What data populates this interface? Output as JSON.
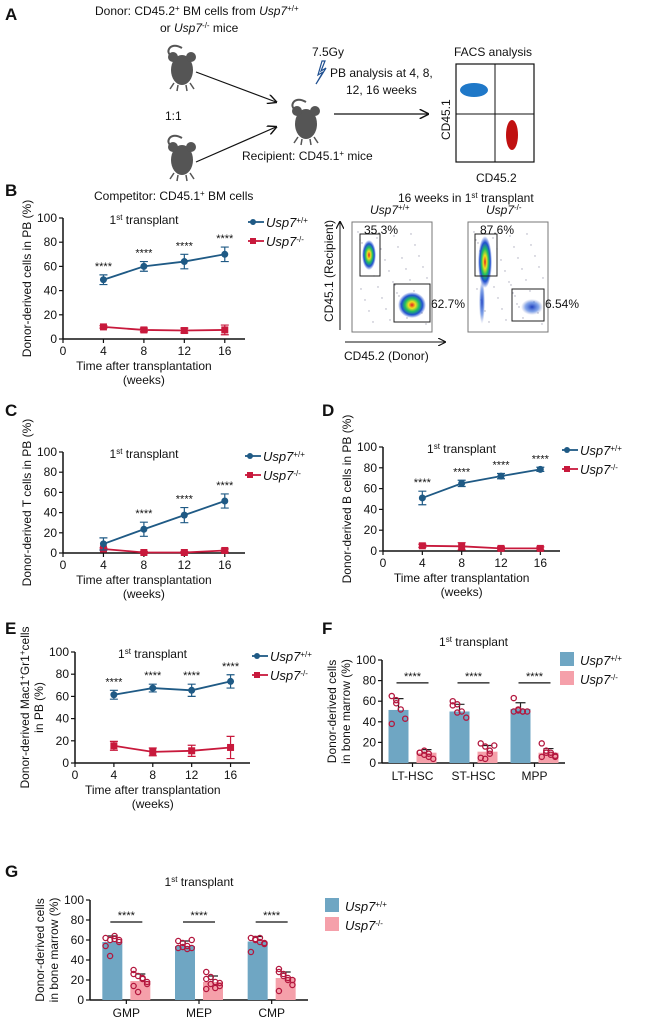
{
  "panel_labels": [
    "A",
    "B",
    "C",
    "D",
    "E",
    "F",
    "G"
  ],
  "colors": {
    "wt_line": "#1f5a85",
    "ko_line": "#c8193c",
    "wt_bar": "#6fa6c3",
    "ko_bar": "#f5a0aa",
    "points": "#b3173e",
    "facs_blue": "#1f78c8",
    "facs_red": "#c01010",
    "mouse": "#555555"
  },
  "schematic": {
    "donor_line1": "Donor: CD45.2",
    "donor_line1_sup": "+",
    "donor_line1_rest": " BM cells from ",
    "donor_gene": "Usp7",
    "donor_gene_sup": "+/+",
    "donor_line2_pre": "or ",
    "donor_gene2": "Usp7",
    "donor_gene2_sup": "-/-",
    "donor_line2_rest": " mice",
    "ratio": "1:1",
    "competitor": "Competitor: CD45.1",
    "competitor_sup": "+",
    "competitor_rest": " BM cells",
    "irradiation": "7.5Gy",
    "irradiation_icon": "lightning-bolt-icon",
    "pb_line1": "PB analysis at 4, 8,",
    "pb_line2": "12, 16 weeks",
    "recipient": "Recipient: CD45.1",
    "recipient_sup": "+",
    "recipient_rest": " mice",
    "facs_title": "FACS analysis",
    "facs_y": "CD45.1",
    "facs_x": "CD45.2",
    "mouse_icon": "mouse-icon"
  },
  "flow": {
    "title_pre": "16 weeks in 1",
    "title_sup": "st",
    "title_post": " transplant",
    "ylabel": "CD45.1 (Recipient)",
    "xlabel": "CD45.2 (Donor)",
    "plots": [
      {
        "gene": "Usp7",
        "sup": "+/+",
        "recipient_pct": "35.3%",
        "donor_pct": "62.7%"
      },
      {
        "gene": "Usp7",
        "sup": "-/-",
        "recipient_pct": "87.6%",
        "donor_pct": "6.54%"
      }
    ]
  },
  "chart_data": [
    {
      "panel": "B",
      "type": "line",
      "title": [
        {
          "t": "1"
        },
        {
          "t": "st",
          "sup": true
        },
        {
          "t": " transplant"
        }
      ],
      "ylabel": [
        [
          {
            "t": "Donor-derived cells in PB (%)"
          }
        ]
      ],
      "xlabel": [
        "Time after transplantation",
        "(weeks)"
      ],
      "ylim": [
        0,
        100
      ],
      "yticks": [
        0,
        20,
        40,
        60,
        80,
        100
      ],
      "xticks": [
        0,
        4,
        8,
        12,
        16
      ],
      "x": [
        4,
        8,
        12,
        16
      ],
      "significance": [
        "****",
        "****",
        "****",
        "****"
      ],
      "legend": "top-right",
      "series": [
        {
          "name": [
            {
              "t": "Usp7",
              "i": true
            },
            {
              "t": "+/+",
              "sup": true
            }
          ],
          "color": "#1f5a85",
          "marker": "circle",
          "values": [
            49,
            60,
            64,
            70
          ],
          "errors": [
            4,
            4,
            6,
            6
          ]
        },
        {
          "name": [
            {
              "t": "Usp7",
              "i": true
            },
            {
              "t": "-/-",
              "sup": true
            }
          ],
          "color": "#c8193c",
          "marker": "square",
          "values": [
            10,
            7.5,
            7,
            7.5
          ],
          "errors": [
            1,
            1.5,
            2,
            4
          ]
        }
      ]
    },
    {
      "panel": "C",
      "type": "line",
      "title": [
        {
          "t": "1"
        },
        {
          "t": "st",
          "sup": true
        },
        {
          "t": " transplant"
        }
      ],
      "ylabel": [
        [
          {
            "t": "Donor-derived T cells in PB (%)"
          }
        ]
      ],
      "xlabel": [
        "Time after transplantation",
        "(weeks)"
      ],
      "ylim": [
        0,
        100
      ],
      "yticks": [
        0,
        20,
        40,
        60,
        80,
        100
      ],
      "xticks": [
        0,
        4,
        8,
        12,
        16
      ],
      "x": [
        4,
        8,
        12,
        16
      ],
      "significance": [
        "",
        "****",
        "****",
        "****"
      ],
      "legend": "top-right",
      "series": [
        {
          "name": [
            {
              "t": "Usp7",
              "i": true
            },
            {
              "t": "+/+",
              "sup": true
            }
          ],
          "color": "#1f5a85",
          "marker": "circle",
          "values": [
            9,
            23.5,
            37.5,
            51.5
          ],
          "errors": [
            6,
            7,
            7.5,
            7
          ]
        },
        {
          "name": [
            {
              "t": "Usp7",
              "i": true
            },
            {
              "t": "-/-",
              "sup": true
            }
          ],
          "color": "#c8193c",
          "marker": "square",
          "values": [
            4,
            0.5,
            0.5,
            2.5
          ],
          "errors": [
            1,
            1,
            1,
            1.5
          ]
        }
      ]
    },
    {
      "panel": "D",
      "type": "line",
      "title": [
        {
          "t": "1"
        },
        {
          "t": "st",
          "sup": true
        },
        {
          "t": " transplant"
        }
      ],
      "ylabel": [
        [
          {
            "t": "Donor-derived B cells in PB (%)"
          }
        ]
      ],
      "xlabel": [
        "Time after transplantation",
        "(weeks)"
      ],
      "ylim": [
        0,
        100
      ],
      "yticks": [
        0,
        20,
        40,
        60,
        80,
        100
      ],
      "xticks": [
        0,
        4,
        8,
        12,
        16
      ],
      "x": [
        4,
        8,
        12,
        16
      ],
      "significance": [
        "****",
        "****",
        "****",
        "****"
      ],
      "legend": "top-right",
      "series": [
        {
          "name": [
            {
              "t": "Usp7",
              "i": true
            },
            {
              "t": "+/+",
              "sup": true
            }
          ],
          "color": "#1f5a85",
          "marker": "circle",
          "values": [
            51,
            65,
            72,
            78.5
          ],
          "errors": [
            6.5,
            3,
            2.5,
            2
          ]
        },
        {
          "name": [
            {
              "t": "Usp7",
              "i": true
            },
            {
              "t": "-/-",
              "sup": true
            }
          ],
          "color": "#c8193c",
          "marker": "square",
          "values": [
            5,
            4.5,
            2.5,
            2.5
          ],
          "errors": [
            1.5,
            3.5,
            1.5,
            1.5
          ]
        }
      ]
    },
    {
      "panel": "E",
      "type": "line",
      "title": [
        {
          "t": "1"
        },
        {
          "t": "st",
          "sup": true
        },
        {
          "t": " transplant"
        }
      ],
      "ylabel": [
        [
          {
            "t": "Donor-derived Mac1"
          },
          {
            "t": "+",
            "sup": true
          },
          {
            "t": "Gr1"
          },
          {
            "t": "+",
            "sup": true
          },
          {
            "t": "cells"
          }
        ],
        [
          {
            "t": "in PB (%)"
          }
        ]
      ],
      "xlabel": [
        "Time after transplantation",
        "(weeks)"
      ],
      "ylim": [
        0,
        100
      ],
      "yticks": [
        0,
        20,
        40,
        60,
        80,
        100
      ],
      "xticks": [
        0,
        4,
        8,
        12,
        16
      ],
      "x": [
        4,
        8,
        12,
        16
      ],
      "significance": [
        "****",
        "****",
        "****",
        "****"
      ],
      "legend": "top-right",
      "series": [
        {
          "name": [
            {
              "t": "Usp7",
              "i": true
            },
            {
              "t": "+/+",
              "sup": true
            }
          ],
          "color": "#1f5a85",
          "marker": "circle",
          "values": [
            61.5,
            67.5,
            65.5,
            73.5
          ],
          "errors": [
            4,
            3.5,
            5.5,
            6
          ]
        },
        {
          "name": [
            {
              "t": "Usp7",
              "i": true
            },
            {
              "t": "-/-",
              "sup": true
            }
          ],
          "color": "#c8193c",
          "marker": "square",
          "values": [
            15.5,
            10,
            11,
            14
          ],
          "errors": [
            4,
            3.5,
            5,
            10
          ]
        }
      ]
    },
    {
      "panel": "F",
      "type": "bar",
      "title": [
        {
          "t": "1"
        },
        {
          "t": "st",
          "sup": true
        },
        {
          "t": " transplant"
        }
      ],
      "ylabel": [
        [
          {
            "t": "Donor-derived cells"
          }
        ],
        [
          {
            "t": "in bone marrow (%)"
          }
        ]
      ],
      "ylim": [
        0,
        100
      ],
      "yticks": [
        0,
        20,
        40,
        60,
        80,
        100
      ],
      "categories": [
        "LT-HSC",
        "ST-HSC",
        "MPP"
      ],
      "significance": [
        "****",
        "****",
        "****"
      ],
      "legend": "top-right",
      "series": [
        {
          "name": [
            {
              "t": "Usp7",
              "i": true
            },
            {
              "t": "+/+",
              "sup": true
            }
          ],
          "color": "#6fa6c3",
          "values": [
            51.5,
            50,
            52.5
          ],
          "errors": [
            11,
            7,
            6
          ],
          "points": [
            [
              65,
              61,
              52,
              43,
              38,
              58
            ],
            [
              60,
              57,
              50,
              44,
              56,
              49
            ],
            [
              63,
              51,
              50,
              50,
              50,
              52,
              50
            ]
          ]
        },
        {
          "name": [
            {
              "t": "Usp7",
              "i": true
            },
            {
              "t": "-/-",
              "sup": true
            }
          ],
          "color": "#f5a0aa",
          "values": [
            10,
            11,
            10
          ],
          "errors": [
            3,
            6,
            4
          ],
          "points": [
            [
              10,
              8,
              6,
              4,
              10,
              12,
              9
            ],
            [
              19,
              4,
              9,
              17,
              5,
              16,
              12
            ],
            [
              19,
              12,
              10,
              7,
              6,
              10,
              8,
              6
            ]
          ]
        }
      ]
    },
    {
      "panel": "G",
      "type": "bar",
      "title": [
        {
          "t": "1"
        },
        {
          "t": "st",
          "sup": true
        },
        {
          "t": " transplant"
        }
      ],
      "ylabel": [
        [
          {
            "t": "Donor-derived cells"
          }
        ],
        [
          {
            "t": "in bone marrow (%)"
          }
        ]
      ],
      "ylim": [
        0,
        100
      ],
      "yticks": [
        0,
        20,
        40,
        60,
        80,
        100
      ],
      "categories": [
        "GMP",
        "MEP",
        "CMP"
      ],
      "significance": [
        "****",
        "****",
        "****"
      ],
      "legend": "right",
      "series": [
        {
          "name": [
            {
              "t": "Usp7",
              "i": true
            },
            {
              "t": "+/+",
              "sup": true
            }
          ],
          "color": "#6fa6c3",
          "values": [
            58,
            54,
            58.5
          ],
          "errors": [
            6,
            5,
            5
          ],
          "points": [
            [
              62,
              60,
              61,
              58,
              54,
              44,
              64,
              60
            ],
            [
              59,
              57,
              54,
              52,
              52,
              53,
              51,
              60
            ],
            [
              62,
              61,
              58,
              56,
              48,
              60,
              62,
              57
            ]
          ]
        },
        {
          "name": [
            {
              "t": "Usp7",
              "i": true
            },
            {
              "t": "-/-",
              "sup": true
            }
          ],
          "color": "#f5a0aa",
          "values": [
            19,
            18,
            22
          ],
          "errors": [
            7,
            6,
            6
          ],
          "points": [
            [
              30,
              24,
              21,
              18,
              14,
              8,
              22,
              16,
              26
            ],
            [
              28,
              23,
              18,
              14,
              11,
              16,
              12,
              17,
              21
            ],
            [
              31,
              26,
              22,
              20,
              9,
              24,
              20,
              15,
              28
            ]
          ]
        }
      ]
    }
  ]
}
